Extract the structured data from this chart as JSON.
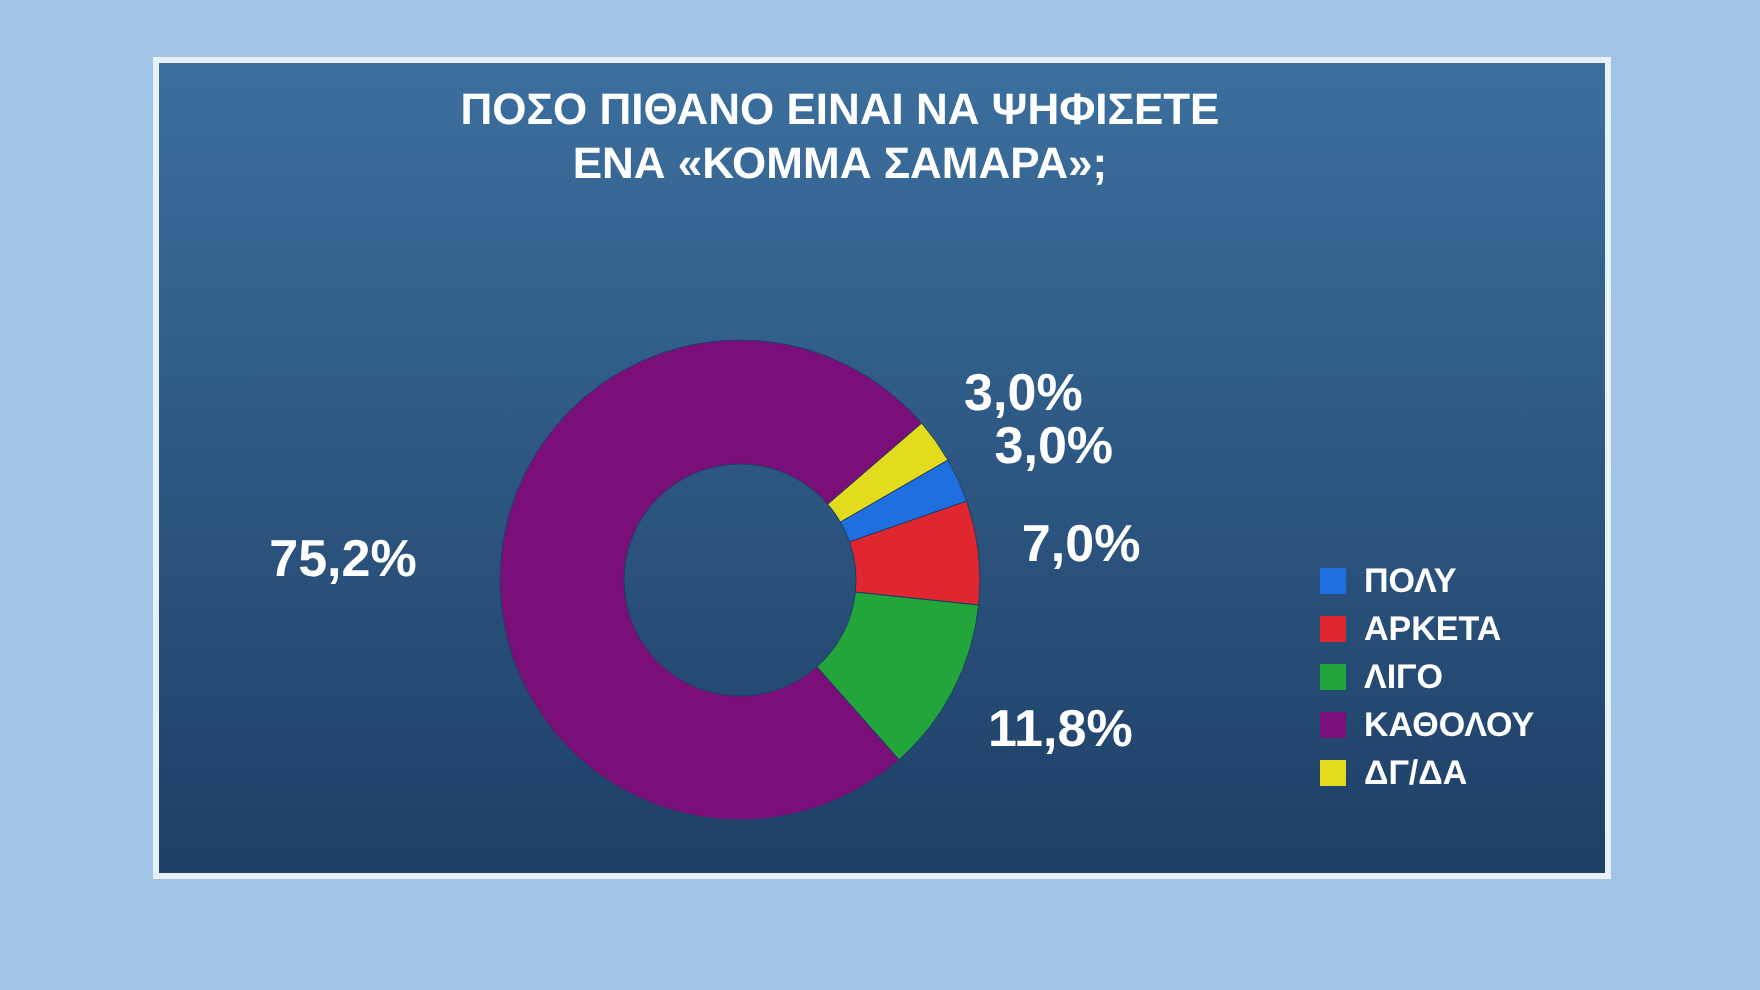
{
  "chart_data": {
    "type": "donut",
    "title": "ΠΟΣΟ ΠΙΘΑΝΟ ΕΙΝΑΙ ΝΑ ΨΗΦΙΣΕΤΕ\nΕΝΑ «ΚΟΜΜΑ ΣΑΜΑΡΑ»;",
    "categories": [
      "ΠΟΛΥ",
      "ΑΡΚΕΤΑ",
      "ΛΙΓΟ",
      "ΚΑΘΟΛΟΥ",
      "ΔΓ/ΔΑ"
    ],
    "values": [
      3.0,
      7.0,
      11.8,
      75.2,
      3.0
    ],
    "colors": [
      "#1f6fe0",
      "#e0262e",
      "#22a53a",
      "#7a0f7a",
      "#e3dc1e"
    ],
    "value_labels": [
      "3,0%",
      "7,0%",
      "11,8%",
      "75,2%",
      "3,0%"
    ],
    "legend": "right"
  }
}
